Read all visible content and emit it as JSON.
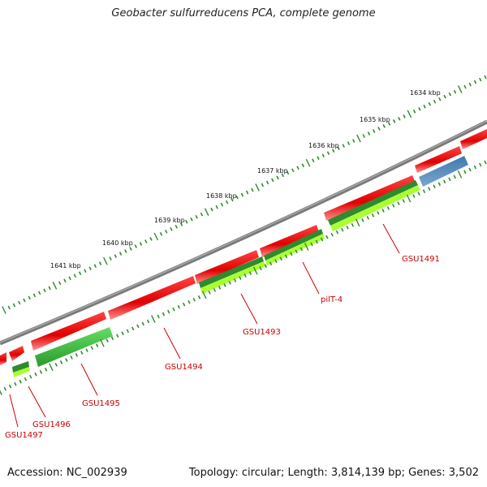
{
  "title": "Geobacter sulfurreducens PCA, complete genome",
  "footer": {
    "accession": "Accession: NC_002939",
    "summary": "Topology: circular; Length: 3,814,139 bp; Genes: 3,502"
  },
  "colors": {
    "backbone": "#808080",
    "forward_gene": "#ee1111",
    "cds_dark": "#228b22",
    "cds_light": "#aaff33",
    "rna": "#4682b4",
    "ticks": "#2e8b2e",
    "labels": "#cc0000"
  },
  "kbp_ticks": [
    "1634 kbp",
    "1635 kbp",
    "1636 kbp",
    "1637 kbp",
    "1638 kbp",
    "1639 kbp",
    "1640 kbp",
    "1641 kbp"
  ],
  "gene_labels": [
    "GSU1491",
    "pilT-4",
    "GSU1493",
    "GSU1494",
    "GSU1495",
    "GSU1496",
    "GSU1497"
  ]
}
